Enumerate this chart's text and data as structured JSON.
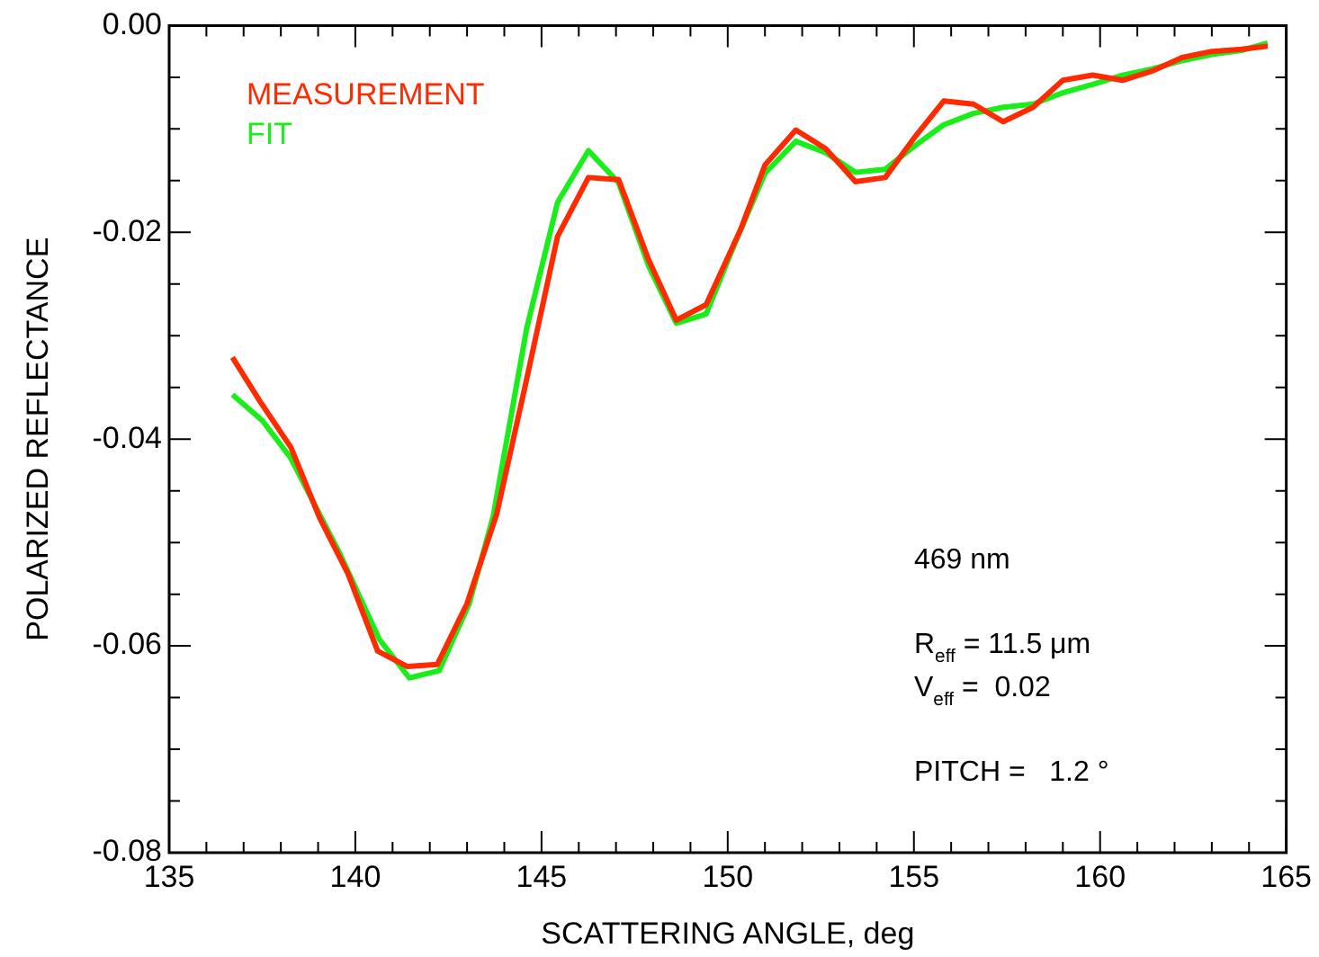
{
  "chart_data": {
    "type": "line",
    "xlabel": "SCATTERING ANGLE, deg",
    "ylabel": "POLARIZED REFLECTANCE",
    "xlim": [
      135,
      165
    ],
    "ylim": [
      -0.08,
      0.0
    ],
    "xticks": [
      135,
      {
        "value": 136,
        "label": null
      },
      {
        "value": 137,
        "label": null
      },
      {
        "value": 138,
        "label": null
      },
      {
        "value": 139,
        "label": null
      },
      140,
      {
        "value": 141,
        "label": null
      },
      {
        "value": 142,
        "label": null
      },
      {
        "value": 143,
        "label": null
      },
      {
        "value": 144,
        "label": null
      },
      145,
      {
        "value": 146,
        "label": null
      },
      {
        "value": 147,
        "label": null
      },
      {
        "value": 148,
        "label": null
      },
      {
        "value": 149,
        "label": null
      },
      150,
      {
        "value": 151,
        "label": null
      },
      {
        "value": 152,
        "label": null
      },
      {
        "value": 153,
        "label": null
      },
      {
        "value": 154,
        "label": null
      },
      155,
      {
        "value": 156,
        "label": null
      },
      {
        "value": 157,
        "label": null
      },
      {
        "value": 158,
        "label": null
      },
      {
        "value": 159,
        "label": null
      },
      160,
      {
        "value": 161,
        "label": null
      },
      {
        "value": 162,
        "label": null
      },
      {
        "value": 163,
        "label": null
      },
      {
        "value": 164,
        "label": null
      },
      165
    ],
    "yticks": [
      {
        "value": -0.08,
        "label": "-0.08"
      },
      {
        "value": -0.075,
        "label": null
      },
      {
        "value": -0.07,
        "label": null
      },
      {
        "value": -0.065,
        "label": null
      },
      {
        "value": -0.06,
        "label": "-0.06"
      },
      {
        "value": -0.055,
        "label": null
      },
      {
        "value": -0.05,
        "label": null
      },
      {
        "value": -0.045,
        "label": null
      },
      {
        "value": -0.04,
        "label": "-0.04"
      },
      {
        "value": -0.035,
        "label": null
      },
      {
        "value": -0.03,
        "label": null
      },
      {
        "value": -0.025,
        "label": null
      },
      {
        "value": -0.02,
        "label": "-0.02"
      },
      {
        "value": -0.015,
        "label": null
      },
      {
        "value": -0.01,
        "label": null
      },
      {
        "value": -0.005,
        "label": null
      },
      {
        "value": 0,
        "label": "0.00"
      }
    ],
    "grid": false,
    "legend": "top left",
    "marker": "none",
    "line_style": "solid",
    "series": [
      {
        "name": "MEASUREMENT",
        "color": "#ff2a00",
        "x": [
          136.7,
          137.45,
          138.27,
          139.04,
          139.8,
          140.6,
          141.4,
          142.2,
          143.0,
          143.8,
          144.6,
          145.43,
          146.26,
          147.07,
          147.87,
          148.62,
          149.42,
          150.35,
          151.0,
          151.83,
          152.63,
          153.43,
          154.23,
          155.0,
          155.8,
          156.6,
          157.4,
          158.2,
          159.0,
          159.8,
          160.6,
          161.4,
          162.2,
          163.0,
          163.8,
          164.5
        ],
        "values": [
          -0.0321,
          -0.0364,
          -0.0408,
          -0.0476,
          -0.053,
          -0.0605,
          -0.062,
          -0.0618,
          -0.0559,
          -0.0472,
          -0.0342,
          -0.0204,
          -0.0147,
          -0.0149,
          -0.0226,
          -0.0285,
          -0.027,
          -0.0197,
          -0.0135,
          -0.0101,
          -0.0119,
          -0.0151,
          -0.0147,
          -0.0109,
          -0.0073,
          -0.0076,
          -0.0093,
          -0.0079,
          -0.0053,
          -0.0048,
          -0.0053,
          -0.0044,
          -0.0031,
          -0.0025,
          -0.0023,
          -0.002
        ]
      },
      {
        "name": "FIT",
        "color": "#1aee1a",
        "x": [
          136.7,
          137.5,
          138.26,
          139.6,
          140.65,
          141.45,
          142.25,
          143.06,
          143.7,
          144.6,
          145.43,
          146.26,
          147.07,
          147.87,
          148.62,
          149.42,
          150.2,
          151.0,
          151.83,
          152.63,
          153.43,
          154.23,
          155.0,
          155.8,
          156.6,
          157.4,
          158.2,
          159.0,
          159.8,
          160.6,
          161.4,
          162.2,
          163.0,
          163.8,
          164.5
        ],
        "values": [
          -0.0357,
          -0.0382,
          -0.0418,
          -0.0512,
          -0.0594,
          -0.0631,
          -0.0624,
          -0.0559,
          -0.0475,
          -0.0293,
          -0.0171,
          -0.0121,
          -0.0152,
          -0.0232,
          -0.0288,
          -0.0279,
          -0.021,
          -0.0143,
          -0.0112,
          -0.0123,
          -0.0142,
          -0.0139,
          -0.0117,
          -0.0096,
          -0.0085,
          -0.0079,
          -0.0076,
          -0.0065,
          -0.0057,
          -0.0048,
          -0.0042,
          -0.0034,
          -0.0028,
          -0.0024,
          -0.0017
        ]
      }
    ],
    "annotations": [
      "469 nm",
      "R$_{eff}$ = 11.5 μm",
      "V$_{eff}$ =  0.02",
      "PITCH =   1.2 °"
    ]
  }
}
